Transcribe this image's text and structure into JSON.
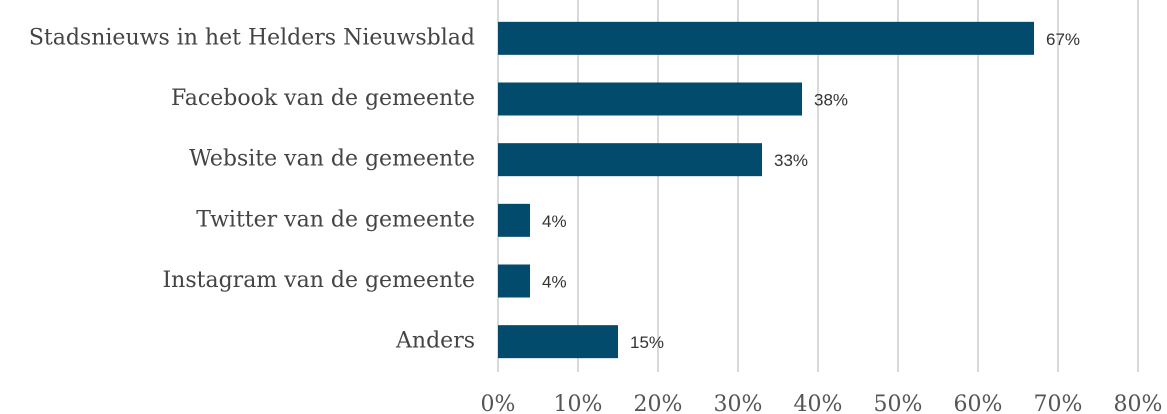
{
  "chart_data": {
    "type": "bar",
    "orientation": "horizontal",
    "categories": [
      "Stadsnieuws in het Helders Nieuwsblad",
      "Facebook van de gemeente",
      "Website van de gemeente",
      "Twitter van de gemeente",
      "Instagram van de gemeente",
      "Anders"
    ],
    "values": [
      67,
      38,
      33,
      4,
      4,
      15
    ],
    "value_labels": [
      "67%",
      "38%",
      "33%",
      "4%",
      "4%",
      "15%"
    ],
    "color": "#034b6c",
    "xlim": [
      0,
      80
    ],
    "xticks": [
      {
        "value": 0,
        "label": "0%"
      },
      {
        "value": 10,
        "label": "10%"
      },
      {
        "value": 20,
        "label": "20%"
      },
      {
        "value": 30,
        "label": "30%"
      },
      {
        "value": 40,
        "label": "40%"
      },
      {
        "value": 50,
        "label": "50%"
      },
      {
        "value": 60,
        "label": "60%"
      },
      {
        "value": 70,
        "label": "70%"
      },
      {
        "value": 80,
        "label": "80%"
      }
    ],
    "grid": true
  }
}
